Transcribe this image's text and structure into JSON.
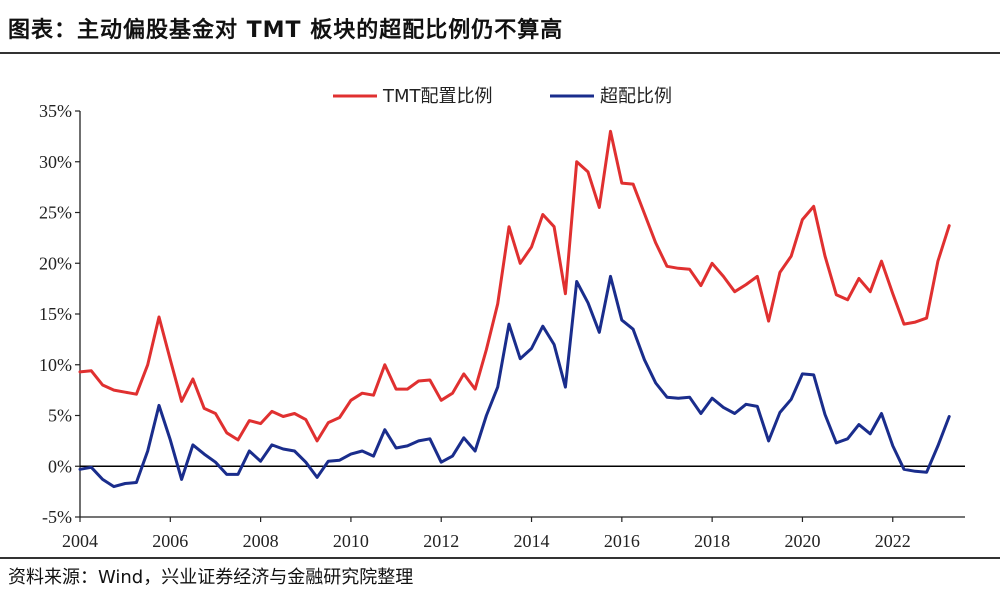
{
  "title": "图表：主动偏股基金对 TMT 板块的超配比例仍不算高",
  "source": "资料来源：Wind，兴业证券经济与金融研究院整理",
  "colors": {
    "tmt": "#e03030",
    "over": "#1a2d8c",
    "axis": "#222222"
  },
  "chart_data": {
    "type": "line",
    "title": "",
    "xlabel": "",
    "ylabel": "",
    "xlim": [
      2004,
      2023.6
    ],
    "ylim": [
      -5,
      35
    ],
    "x_ticks": [
      "2004",
      "2006",
      "2008",
      "2010",
      "2012",
      "2014",
      "2016",
      "2018",
      "2020",
      "2022"
    ],
    "y_ticks": [
      "35%",
      "30%",
      "25%",
      "20%",
      "15%",
      "10%",
      "5%",
      "0%",
      "-5%"
    ],
    "legend_position": "top",
    "grid": false,
    "x": [
      2004.0,
      2004.25,
      2004.5,
      2004.75,
      2005.0,
      2005.25,
      2005.5,
      2005.75,
      2006.0,
      2006.25,
      2006.5,
      2006.75,
      2007.0,
      2007.25,
      2007.5,
      2007.75,
      2008.0,
      2008.25,
      2008.5,
      2008.75,
      2009.0,
      2009.25,
      2009.5,
      2009.75,
      2010.0,
      2010.25,
      2010.5,
      2010.75,
      2011.0,
      2011.25,
      2011.5,
      2011.75,
      2012.0,
      2012.25,
      2012.5,
      2012.75,
      2013.0,
      2013.25,
      2013.5,
      2013.75,
      2014.0,
      2014.25,
      2014.5,
      2014.75,
      2015.0,
      2015.25,
      2015.5,
      2015.75,
      2016.0,
      2016.25,
      2016.5,
      2016.75,
      2017.0,
      2017.25,
      2017.5,
      2017.75,
      2018.0,
      2018.25,
      2018.5,
      2018.75,
      2019.0,
      2019.25,
      2019.5,
      2019.75,
      2020.0,
      2020.25,
      2020.5,
      2020.75,
      2021.0,
      2021.25,
      2021.5,
      2021.75,
      2022.0,
      2022.25,
      2022.5,
      2022.75,
      2023.0,
      2023.25
    ],
    "series": [
      {
        "name": "TMT配置比例",
        "color": "#e03030",
        "values": [
          9.3,
          9.4,
          8.0,
          7.5,
          7.3,
          7.1,
          10.0,
          14.7,
          10.5,
          6.4,
          8.6,
          5.7,
          5.2,
          3.3,
          2.6,
          4.5,
          4.2,
          5.4,
          4.9,
          5.2,
          4.6,
          2.5,
          4.3,
          4.8,
          6.5,
          7.2,
          7.0,
          10.0,
          7.6,
          7.6,
          8.4,
          8.5,
          6.5,
          7.2,
          9.1,
          7.6,
          11.5,
          16.0,
          23.6,
          20.0,
          21.6,
          24.8,
          23.6,
          17.0,
          30.0,
          29.0,
          25.5,
          33.0,
          27.9,
          27.8,
          24.9,
          22.0,
          19.7,
          19.5,
          19.4,
          17.8,
          20.0,
          18.7,
          17.2,
          17.9,
          18.7,
          14.3,
          19.1,
          20.7,
          24.3,
          25.6,
          20.7,
          16.9,
          16.4,
          18.5,
          17.2,
          20.2,
          17.0,
          14.0,
          14.2,
          14.6,
          20.2,
          23.7
        ]
      },
      {
        "name": "超配比例",
        "color": "#1a2d8c",
        "values": [
          -0.3,
          -0.1,
          -1.3,
          -2.0,
          -1.7,
          -1.6,
          1.5,
          6.0,
          2.6,
          -1.3,
          2.1,
          1.2,
          0.4,
          -0.8,
          -0.8,
          1.5,
          0.5,
          2.1,
          1.7,
          1.5,
          0.4,
          -1.1,
          0.5,
          0.6,
          1.2,
          1.5,
          1.0,
          3.6,
          1.8,
          2.0,
          2.5,
          2.7,
          0.4,
          1.0,
          2.8,
          1.5,
          5.0,
          7.8,
          14.0,
          10.6,
          11.6,
          13.8,
          12.0,
          7.8,
          18.2,
          16.1,
          13.2,
          18.7,
          14.4,
          13.5,
          10.5,
          8.2,
          6.8,
          6.7,
          6.8,
          5.2,
          6.7,
          5.8,
          5.2,
          6.1,
          5.9,
          2.5,
          5.3,
          6.6,
          9.1,
          9.0,
          5.1,
          2.3,
          2.7,
          4.1,
          3.2,
          5.2,
          2.0,
          -0.3,
          -0.5,
          -0.6,
          2.0,
          4.9
        ]
      }
    ]
  }
}
